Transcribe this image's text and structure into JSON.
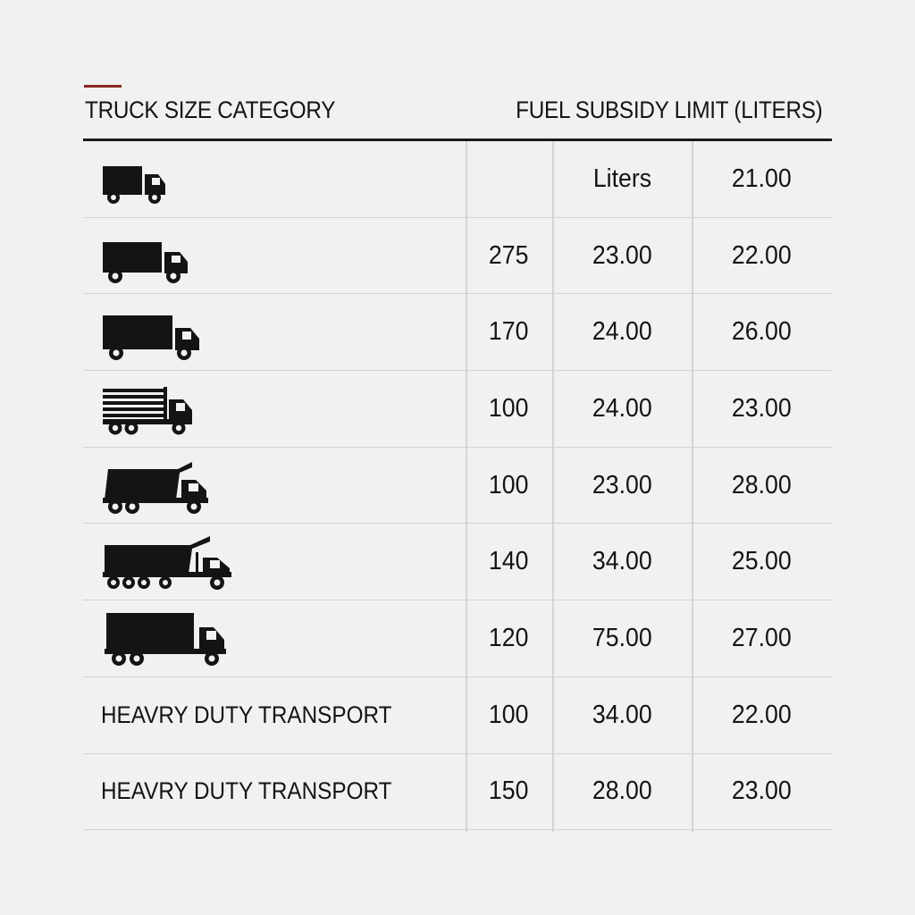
{
  "header": {
    "category_label": "TRUCK SIZE CATEGORY",
    "subsidy_label": "FUEL SUBSIDY LIMIT (LITERS)"
  },
  "rows": [
    {
      "icon": "small-box-truck-icon",
      "label": "",
      "col1": "",
      "col2": "Liters",
      "col3": "21.00"
    },
    {
      "icon": "box-truck-icon",
      "label": "",
      "col1": "275",
      "col2": "23.00",
      "col3": "22.00"
    },
    {
      "icon": "large-box-truck-icon",
      "label": "",
      "col1": "170",
      "col2": "24.00",
      "col3": "26.00"
    },
    {
      "icon": "flatbed-truck-icon",
      "label": "",
      "col1": "100",
      "col2": "24.00",
      "col3": "23.00"
    },
    {
      "icon": "dump-truck-icon",
      "label": "",
      "col1": "100",
      "col2": "23.00",
      "col3": "28.00"
    },
    {
      "icon": "heavy-dump-truck-icon",
      "label": "",
      "col1": "140",
      "col2": "34.00",
      "col3": "25.00"
    },
    {
      "icon": "cargo-truck-icon",
      "label": "",
      "col1": "120",
      "col2": "75.00",
      "col3": "27.00"
    },
    {
      "icon": "",
      "label": "HEAVRY DUTY TRANSPORT",
      "col1": "100",
      "col2": "34.00",
      "col3": "22.00"
    },
    {
      "icon": "",
      "label": "HEAVRY DUTY TRANSPORT",
      "col1": "150",
      "col2": "28.00",
      "col3": "23.00"
    }
  ],
  "colors": {
    "accent": "#8a2a22",
    "text": "#141414",
    "background": "#f1f1f1",
    "rule": "#1a1a1a",
    "grid": "#d2d2d2"
  }
}
